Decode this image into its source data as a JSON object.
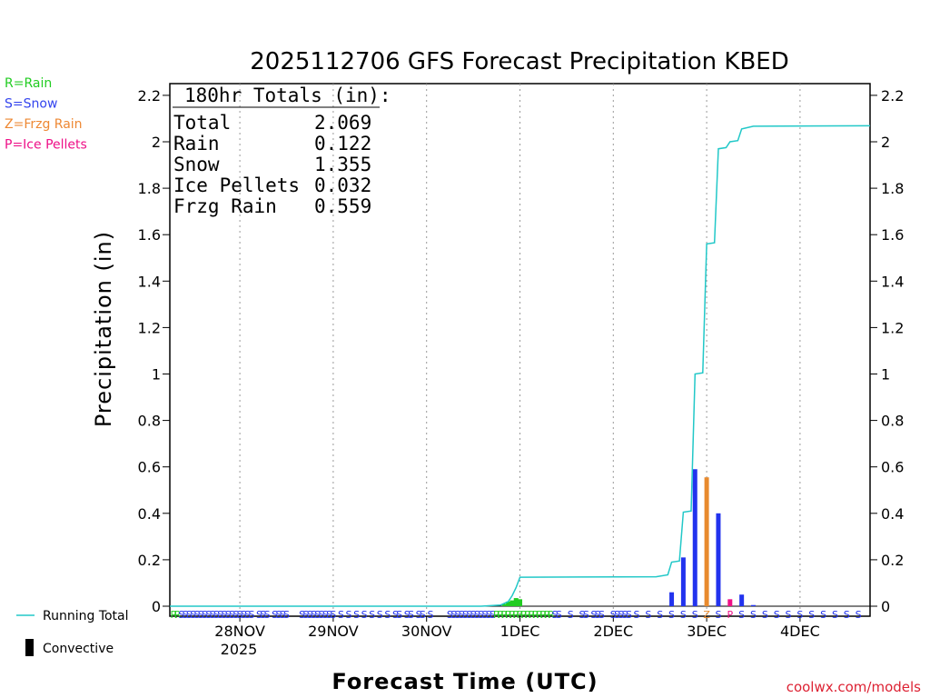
{
  "chart_data": {
    "type": "bar",
    "title": "2025112706 GFS Forecast Precipitation KBED",
    "xlabel": "Forecast Time (UTC)",
    "ylabel": "Precipitation (in)",
    "ylim": [
      0,
      2.25
    ],
    "xlim_hours": [
      0,
      180
    ],
    "y_ticks": [
      "0",
      "0.2",
      "0.4",
      "0.6",
      "0.8",
      "1",
      "1.2",
      "1.4",
      "1.6",
      "1.8",
      "2",
      "2.2"
    ],
    "y_tick_values": [
      0,
      0.2,
      0.4,
      0.6,
      0.8,
      1.0,
      1.2,
      1.4,
      1.6,
      1.8,
      2.0,
      2.2
    ],
    "x_ticks": [
      {
        "label": "28NOV",
        "hour": 18
      },
      {
        "label": "29NOV",
        "hour": 42
      },
      {
        "label": "30NOV",
        "hour": 66
      },
      {
        "label": "1DEC",
        "hour": 90
      },
      {
        "label": "2DEC",
        "hour": 114
      },
      {
        "label": "3DEC",
        "hour": 138
      },
      {
        "label": "4DEC",
        "hour": 162
      }
    ],
    "year_label": "2025",
    "totals": {
      "header": "180hr Totals (in):",
      "rows": [
        {
          "label": "Total",
          "value": "2.069"
        },
        {
          "label": "Rain",
          "value": "0.122"
        },
        {
          "label": "Snow",
          "value": "1.355"
        },
        {
          "label": "Ice Pellets",
          "value": "0.032"
        },
        {
          "label": "Frzg Rain",
          "value": "0.559"
        }
      ]
    },
    "type_legend": [
      {
        "text": "R=Rain",
        "color": "#22cc22"
      },
      {
        "text": "S=Snow",
        "color": "#3344ee"
      },
      {
        "text": "Z=Frzg Rain",
        "color": "#ee8833"
      },
      {
        "text": "P=Ice Pellets",
        "color": "#ee1188"
      }
    ],
    "bottom_legend": {
      "running_total": "Running Total",
      "convective": "Convective"
    },
    "colors": {
      "R": "#22cc22",
      "S": "#2233ee",
      "Z": "#e88a2e",
      "P": "#ee1188",
      "running_total": "#22c8c8"
    },
    "series": [
      {
        "name": "Rain",
        "type": "R",
        "hours": [
          86,
          87,
          88,
          89,
          90
        ],
        "values": [
          0.01,
          0.02,
          0.025,
          0.035,
          0.03
        ]
      },
      {
        "name": "Snow",
        "type": "S",
        "hours": [
          129,
          132,
          135,
          141,
          147,
          150
        ],
        "values": [
          0.06,
          0.21,
          0.59,
          0.4,
          0.05,
          0.005
        ]
      },
      {
        "name": "Frzg Rain",
        "type": "Z",
        "hours": [
          138
        ],
        "values": [
          0.555
        ]
      },
      {
        "name": "Ice Pellets",
        "type": "P",
        "hours": [
          144
        ],
        "values": [
          0.03
        ]
      }
    ],
    "running_total": {
      "hours": [
        0,
        40,
        80,
        85,
        87,
        88,
        89,
        90,
        125,
        128,
        129,
        131,
        132,
        134,
        135,
        137,
        138,
        140,
        141,
        143,
        144,
        146,
        147,
        150,
        180
      ],
      "values": [
        0,
        0,
        0,
        0.005,
        0.02,
        0.045,
        0.08,
        0.125,
        0.127,
        0.135,
        0.19,
        0.195,
        0.405,
        0.41,
        1.0,
        1.005,
        1.56,
        1.565,
        1.97,
        1.975,
        2.0,
        2.005,
        2.055,
        2.067,
        2.069
      ]
    },
    "type_strip": [
      {
        "hour": 1,
        "type": "R"
      },
      {
        "hour": 2,
        "type": "R"
      },
      {
        "hour": 3,
        "type": "S"
      },
      {
        "hour": 4,
        "type": "S"
      },
      {
        "hour": 5,
        "type": "S"
      },
      {
        "hour": 6,
        "type": "S"
      },
      {
        "hour": 7,
        "type": "S"
      },
      {
        "hour": 8,
        "type": "S"
      },
      {
        "hour": 9,
        "type": "S"
      },
      {
        "hour": 10,
        "type": "S"
      },
      {
        "hour": 11,
        "type": "S"
      },
      {
        "hour": 12,
        "type": "S"
      },
      {
        "hour": 13,
        "type": "S"
      },
      {
        "hour": 14,
        "type": "S"
      },
      {
        "hour": 15,
        "type": "S"
      },
      {
        "hour": 16,
        "type": "S"
      },
      {
        "hour": 17,
        "type": "S"
      },
      {
        "hour": 18,
        "type": "S"
      },
      {
        "hour": 19,
        "type": "S"
      },
      {
        "hour": 20,
        "type": "S"
      },
      {
        "hour": 21,
        "type": "S"
      },
      {
        "hour": 23,
        "type": "S"
      },
      {
        "hour": 24,
        "type": "S"
      },
      {
        "hour": 25,
        "type": "S"
      },
      {
        "hour": 27,
        "type": "S"
      },
      {
        "hour": 28,
        "type": "S"
      },
      {
        "hour": 29,
        "type": "S"
      },
      {
        "hour": 30,
        "type": "S"
      },
      {
        "hour": 34,
        "type": "S"
      },
      {
        "hour": 35,
        "type": "S"
      },
      {
        "hour": 36,
        "type": "S"
      },
      {
        "hour": 37,
        "type": "S"
      },
      {
        "hour": 38,
        "type": "S"
      },
      {
        "hour": 39,
        "type": "S"
      },
      {
        "hour": 40,
        "type": "S"
      },
      {
        "hour": 41,
        "type": "S"
      },
      {
        "hour": 42,
        "type": "S"
      },
      {
        "hour": 44,
        "type": "S"
      },
      {
        "hour": 46,
        "type": "S"
      },
      {
        "hour": 48,
        "type": "S"
      },
      {
        "hour": 50,
        "type": "S"
      },
      {
        "hour": 52,
        "type": "S"
      },
      {
        "hour": 54,
        "type": "S"
      },
      {
        "hour": 56,
        "type": "S"
      },
      {
        "hour": 58,
        "type": "S"
      },
      {
        "hour": 59,
        "type": "S"
      },
      {
        "hour": 61,
        "type": "S"
      },
      {
        "hour": 62,
        "type": "S"
      },
      {
        "hour": 64,
        "type": "S"
      },
      {
        "hour": 65,
        "type": "S"
      },
      {
        "hour": 67,
        "type": "S"
      },
      {
        "hour": 72,
        "type": "S"
      },
      {
        "hour": 73,
        "type": "S"
      },
      {
        "hour": 74,
        "type": "S"
      },
      {
        "hour": 75,
        "type": "S"
      },
      {
        "hour": 76,
        "type": "S"
      },
      {
        "hour": 77,
        "type": "S"
      },
      {
        "hour": 78,
        "type": "S"
      },
      {
        "hour": 79,
        "type": "S"
      },
      {
        "hour": 80,
        "type": "S"
      },
      {
        "hour": 81,
        "type": "S"
      },
      {
        "hour": 82,
        "type": "S"
      },
      {
        "hour": 83,
        "type": "S"
      },
      {
        "hour": 84,
        "type": "R"
      },
      {
        "hour": 85,
        "type": "R"
      },
      {
        "hour": 86,
        "type": "R"
      },
      {
        "hour": 87,
        "type": "R"
      },
      {
        "hour": 88,
        "type": "R"
      },
      {
        "hour": 89,
        "type": "R"
      },
      {
        "hour": 90,
        "type": "R"
      },
      {
        "hour": 91,
        "type": "R"
      },
      {
        "hour": 92,
        "type": "R"
      },
      {
        "hour": 93,
        "type": "R"
      },
      {
        "hour": 94,
        "type": "R"
      },
      {
        "hour": 95,
        "type": "R"
      },
      {
        "hour": 96,
        "type": "R"
      },
      {
        "hour": 97,
        "type": "R"
      },
      {
        "hour": 98,
        "type": "R"
      },
      {
        "hour": 99,
        "type": "S"
      },
      {
        "hour": 100,
        "type": "S"
      },
      {
        "hour": 103,
        "type": "S"
      },
      {
        "hour": 106,
        "type": "S"
      },
      {
        "hour": 107,
        "type": "S"
      },
      {
        "hour": 109,
        "type": "S"
      },
      {
        "hour": 110,
        "type": "S"
      },
      {
        "hour": 111,
        "type": "S"
      },
      {
        "hour": 114,
        "type": "S"
      },
      {
        "hour": 115,
        "type": "S"
      },
      {
        "hour": 116,
        "type": "S"
      },
      {
        "hour": 117,
        "type": "S"
      },
      {
        "hour": 118,
        "type": "S"
      },
      {
        "hour": 120,
        "type": "S"
      },
      {
        "hour": 123,
        "type": "S"
      },
      {
        "hour": 126,
        "type": "S"
      },
      {
        "hour": 129,
        "type": "S"
      },
      {
        "hour": 132,
        "type": "S"
      },
      {
        "hour": 135,
        "type": "S"
      },
      {
        "hour": 138,
        "type": "Z"
      },
      {
        "hour": 141,
        "type": "S"
      },
      {
        "hour": 144,
        "type": "P"
      },
      {
        "hour": 147,
        "type": "S"
      },
      {
        "hour": 150,
        "type": "S"
      },
      {
        "hour": 153,
        "type": "S"
      },
      {
        "hour": 156,
        "type": "S"
      },
      {
        "hour": 159,
        "type": "S"
      },
      {
        "hour": 162,
        "type": "S"
      },
      {
        "hour": 165,
        "type": "S"
      },
      {
        "hour": 168,
        "type": "S"
      },
      {
        "hour": 171,
        "type": "S"
      },
      {
        "hour": 174,
        "type": "S"
      },
      {
        "hour": 177,
        "type": "S"
      }
    ]
  },
  "credit": "coolwx.com/models"
}
